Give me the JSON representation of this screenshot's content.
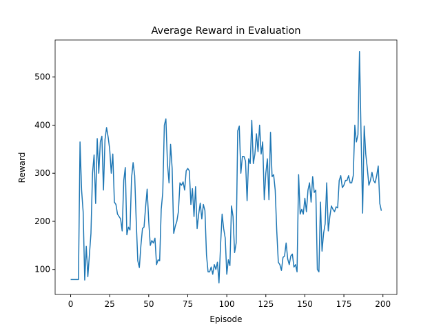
{
  "chart_data": {
    "type": "line",
    "title": "Average Reward in Evaluation",
    "x_label": "Episode",
    "y_label": "Reward",
    "series": [
      {
        "color": "#1f77b4",
        "values": [
          79,
          79,
          79,
          79,
          79,
          79,
          365,
          265,
          220,
          78,
          148,
          85,
          130,
          175,
          300,
          338,
          237,
          372,
          300,
          365,
          377,
          265,
          370,
          395,
          375,
          350,
          300,
          340,
          240,
          235,
          215,
          210,
          205,
          180,
          285,
          312,
          172,
          188,
          182,
          290,
          322,
          295,
          200,
          118,
          104,
          150,
          185,
          188,
          230,
          267,
          200,
          150,
          160,
          155,
          165,
          110,
          120,
          118,
          225,
          260,
          400,
          413,
          320,
          280,
          360,
          310,
          175,
          190,
          200,
          220,
          280,
          275,
          282,
          265,
          305,
          310,
          305,
          235,
          268,
          210,
          272,
          185,
          215,
          238,
          205,
          235,
          222,
          130,
          95,
          95,
          105,
          90,
          110,
          100,
          115,
          72,
          150,
          215,
          185,
          165,
          90,
          120,
          108,
          232,
          210,
          135,
          155,
          388,
          398,
          300,
          335,
          335,
          325,
          243,
          330,
          320,
          410,
          320,
          340,
          382,
          345,
          400,
          340,
          365,
          245,
          300,
          330,
          245,
          385,
          293,
          297,
          265,
          180,
          115,
          110,
          98,
          125,
          128,
          155,
          122,
          110,
          128,
          132,
          105,
          110,
          95,
          297,
          215,
          225,
          215,
          248,
          220,
          265,
          280,
          240,
          293,
          260,
          265,
          100,
          95,
          240,
          138,
          175,
          195,
          280,
          180,
          210,
          232,
          225,
          220,
          230,
          228,
          285,
          295,
          270,
          275,
          285,
          285,
          295,
          280,
          280,
          295,
          400,
          365,
          380,
          553,
          380,
          217,
          398,
          340,
          310,
          275,
          285,
          302,
          285,
          280,
          295,
          315,
          237,
          222
        ]
      }
    ],
    "xlim": [
      -9.95,
      208.95
    ],
    "xticks": [
      0,
      25,
      50,
      75,
      100,
      125,
      150,
      175,
      200
    ],
    "ylim": [
      48,
      577
    ],
    "yticks": [
      100,
      200,
      300,
      400,
      500
    ]
  }
}
